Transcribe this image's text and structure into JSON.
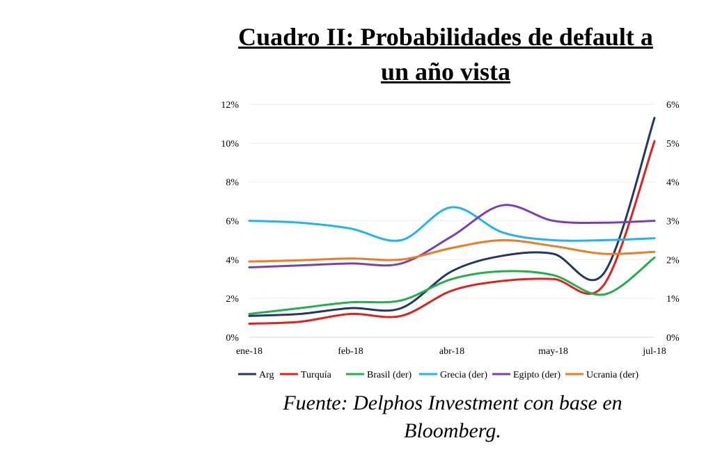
{
  "header": {
    "title_line1": "Cuadro II: Probabilidades de default a",
    "title_line2": "un año vista"
  },
  "source": {
    "line1": "Fuente: Delphos Investment con base en",
    "line2": "Bloomberg."
  },
  "chart_data": {
    "type": "line",
    "x_labels": [
      "ene-18",
      "feb-18",
      "abr-18",
      "may-18",
      "jul-18"
    ],
    "x_label_positions": [
      0,
      1,
      2,
      3,
      4
    ],
    "y_left": {
      "ticks": [
        "0%",
        "2%",
        "4%",
        "6%",
        "8%",
        "10%",
        "12%"
      ],
      "ylim": [
        0,
        12
      ]
    },
    "y_right": {
      "ticks": [
        "0%",
        "1%",
        "2%",
        "3%",
        "4%",
        "5%",
        "6%"
      ],
      "ylim": [
        0,
        6
      ]
    },
    "grid": true,
    "legend_position": "bottom",
    "series": [
      {
        "name": "Arg",
        "axis": "left",
        "color": "#1f3864",
        "x": [
          0,
          0.5,
          1,
          1.5,
          2,
          2.5,
          3,
          3.5,
          4
        ],
        "y": [
          1.1,
          1.2,
          1.5,
          1.5,
          3.4,
          4.2,
          4.3,
          3.3,
          11.3
        ]
      },
      {
        "name": "Turquía",
        "axis": "left",
        "color": "#e0211c",
        "x": [
          0,
          0.5,
          1,
          1.5,
          2,
          2.5,
          3,
          3.5,
          4
        ],
        "y": [
          0.7,
          0.8,
          1.2,
          1.1,
          2.4,
          2.9,
          3.0,
          2.7,
          10.1
        ]
      },
      {
        "name": "Brasil (der)",
        "axis": "right",
        "color": "#22b04b",
        "x": [
          0,
          0.5,
          1,
          1.5,
          2,
          2.5,
          3,
          3.5,
          4
        ],
        "y": [
          0.6,
          0.75,
          0.9,
          0.95,
          1.5,
          1.7,
          1.6,
          1.1,
          2.05
        ]
      },
      {
        "name": "Grecia (der)",
        "axis": "right",
        "color": "#1eb4f0",
        "x": [
          0,
          0.5,
          1,
          1.5,
          2,
          2.5,
          3,
          3.5,
          4
        ],
        "y": [
          3.0,
          2.95,
          2.8,
          2.5,
          3.35,
          2.7,
          2.5,
          2.5,
          2.55
        ]
      },
      {
        "name": "Egipto (der)",
        "axis": "right",
        "color": "#7b3fb5",
        "x": [
          0,
          0.5,
          1,
          1.5,
          2,
          2.5,
          3,
          3.5,
          4
        ],
        "y": [
          1.8,
          1.85,
          1.9,
          1.9,
          2.6,
          3.4,
          3.0,
          2.95,
          3.0
        ]
      },
      {
        "name": "Ucrania (der)",
        "axis": "right",
        "color": "#ef7b22",
        "x": [
          0,
          0.5,
          1,
          1.5,
          2,
          2.5,
          3,
          3.5,
          4
        ],
        "y": [
          1.95,
          1.98,
          2.03,
          2.0,
          2.3,
          2.5,
          2.35,
          2.15,
          2.2
        ]
      }
    ]
  }
}
